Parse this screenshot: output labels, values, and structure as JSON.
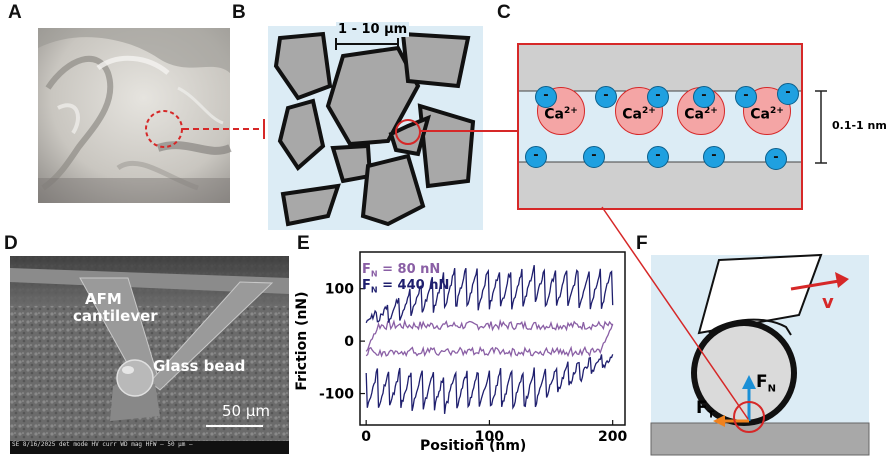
{
  "panels": {
    "a": {
      "label": "A"
    },
    "b": {
      "label": "B",
      "scale_text": "1 - 10 µm"
    },
    "c": {
      "label": "C",
      "ion_label": "Ca",
      "ion_charge": "2+",
      "anion_label": "-",
      "gap_text": "0.1-1 nm"
    },
    "d": {
      "label": "D",
      "cantilever_text_1": "AFM",
      "cantilever_text_2": "cantilever",
      "bead_text": "Glass bead",
      "scale_text": "50 µm",
      "sem_info": "SE   8/16/2025   det   mode   HV    curr    WD     mag   HFW          — 50 µm —"
    },
    "e": {
      "label": "E"
    },
    "f": {
      "label": "F",
      "velocity": "v",
      "normal_force": "F",
      "normal_sub": "N",
      "tangential_force": "F",
      "tangential_sub": "T"
    }
  },
  "chart_data": {
    "type": "line",
    "xlabel": "Position (nm)",
    "ylabel": "Friction (nN)",
    "xlim": [
      -5,
      210
    ],
    "ylim": [
      -160,
      170
    ],
    "xticks": [
      0,
      100,
      200
    ],
    "yticks": [
      100,
      0,
      -100
    ],
    "series": [
      {
        "name": "F_N = 80 nN",
        "legend_main": "F",
        "legend_sub": "N",
        "legend_rest": " = 80 nN",
        "color": "#8a5fa5",
        "forward_level": 30,
        "backward_level": -20,
        "noise": 8
      },
      {
        "name": "F_N = 440 nN",
        "legend_main": "F",
        "legend_sub": "N",
        "legend_rest": " = 440 nN",
        "color": "#1f1f6e",
        "forward_min": 20,
        "forward_max": 145,
        "backward_min": -135,
        "backward_max": -15,
        "noise": 6
      }
    ]
  },
  "colors": {
    "bg_blue": "#dcecf5",
    "grain": "#a8a8a8",
    "red": "#d62828",
    "cation": "#f4a5a5",
    "anion": "#1fa0e0",
    "arrow_blue": "#1a8fd6",
    "arrow_orange": "#f0821e"
  }
}
